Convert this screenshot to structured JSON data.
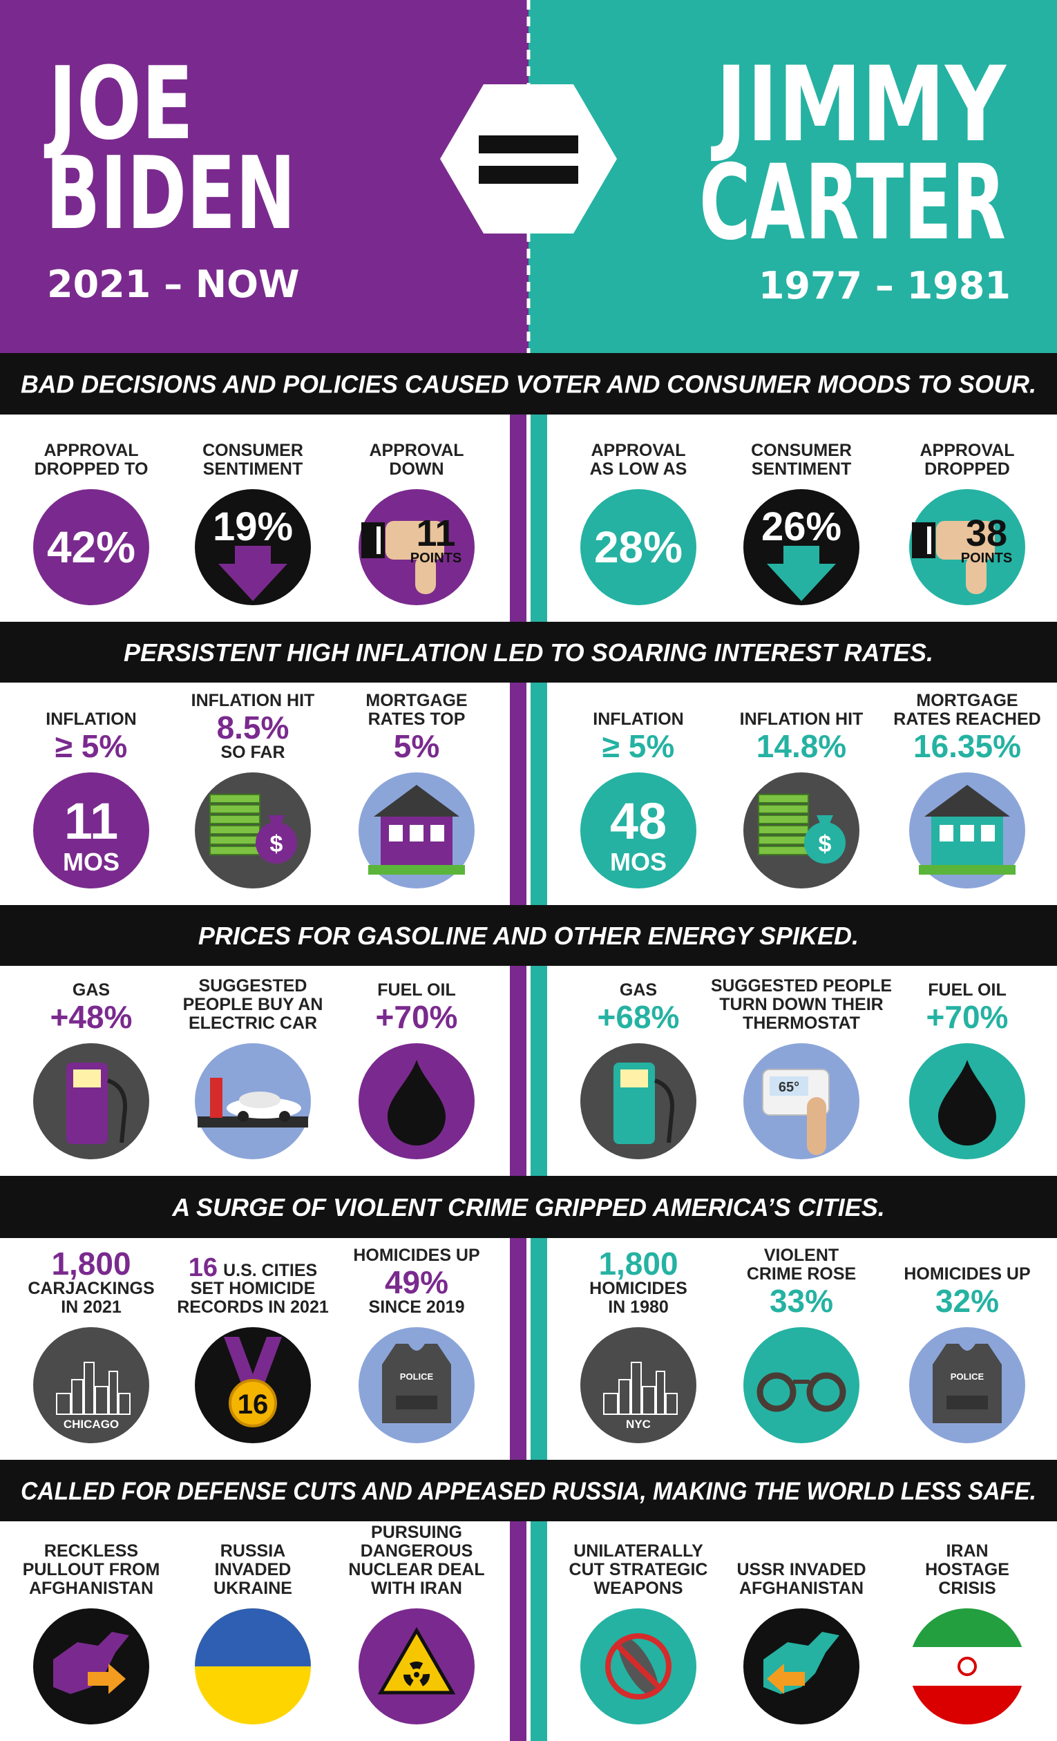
{
  "header": {
    "left": {
      "name": [
        "JOE",
        "BIDEN"
      ],
      "years": "2021 – NOW"
    },
    "right": {
      "name": [
        "JIMMY",
        "CARTER"
      ],
      "years": "1977 – 1981"
    }
  },
  "sections": [
    {
      "banner": "BAD DECISIONS AND POLICIES CAUSED VOTER AND CONSUMER MOODS TO SOUR.",
      "left": [
        {
          "label": [
            "APPROVAL",
            "DROPPED TO"
          ],
          "circle": [
            "42%"
          ]
        },
        {
          "label": [
            "CONSUMER",
            "SENTIMENT"
          ],
          "circle": [
            "19%"
          ]
        },
        {
          "label": [
            "APPROVAL",
            "DOWN"
          ],
          "circle": [
            "11",
            "POINTS"
          ]
        }
      ],
      "right": [
        {
          "label": [
            "APPROVAL",
            "AS LOW AS"
          ],
          "circle": [
            "28%"
          ]
        },
        {
          "label": [
            "CONSUMER",
            "SENTIMENT"
          ],
          "circle": [
            "26%"
          ]
        },
        {
          "label": [
            "APPROVAL",
            "DROPPED"
          ],
          "circle": [
            "38",
            "POINTS"
          ]
        }
      ]
    },
    {
      "banner": "PERSISTENT HIGH INFLATION LED TO SOARING INTEREST RATES.",
      "left": [
        {
          "label": [
            "INFLATION"
          ],
          "stat": "≥ 5%",
          "circle": [
            "11",
            "MOS"
          ]
        },
        {
          "label": [
            "INFLATION HIT"
          ],
          "stat": "8.5%",
          "sub": [
            "SO FAR"
          ],
          "circle": [
            "$"
          ]
        },
        {
          "label": [
            "MORTGAGE",
            "RATES TOP"
          ],
          "stat": "5%"
        }
      ],
      "right": [
        {
          "label": [
            "INFLATION"
          ],
          "stat": "≥ 5%",
          "circle": [
            "48",
            "MOS"
          ]
        },
        {
          "label": [
            "INFLATION HIT"
          ],
          "stat": "14.8%",
          "circle": [
            "$"
          ]
        },
        {
          "label": [
            "MORTGAGE",
            "RATES REACHED"
          ],
          "stat": "16.35%"
        }
      ]
    },
    {
      "banner": "PRICES FOR GASOLINE AND OTHER ENERGY SPIKED.",
      "left": [
        {
          "label": [
            "GAS"
          ],
          "stat": "+48%"
        },
        {
          "label": [
            "SUGGESTED",
            "PEOPLE BUY AN",
            "ELECTRIC CAR"
          ]
        },
        {
          "label": [
            "FUEL OIL"
          ],
          "stat": "+70%"
        }
      ],
      "right": [
        {
          "label": [
            "GAS"
          ],
          "stat": "+68%"
        },
        {
          "label": [
            "SUGGESTED PEOPLE",
            "TURN DOWN THEIR",
            "THERMOSTAT"
          ],
          "circle": [
            "65°"
          ]
        },
        {
          "label": [
            "FUEL OIL"
          ],
          "stat": "+70%"
        }
      ]
    },
    {
      "banner": "A SURGE OF VIOLENT CRIME GRIPPED AMERICA’S CITIES.",
      "left": [
        {
          "top": "1,800",
          "label": [
            "CARJACKINGS",
            "IN 2021"
          ],
          "circle": [
            "CHICAGO"
          ]
        },
        {
          "lead": "16",
          "label": [
            "U.S. CITIES",
            "SET HOMICIDE",
            "RECORDS IN 2021"
          ],
          "circle": [
            "16"
          ]
        },
        {
          "label": [
            "HOMICIDES UP"
          ],
          "stat": "49%",
          "sub": [
            "SINCE 2019"
          ],
          "circle": [
            "POLICE"
          ]
        }
      ],
      "right": [
        {
          "top": "1,800",
          "label": [
            "HOMICIDES",
            "IN 1980"
          ],
          "circle": [
            "NYC"
          ]
        },
        {
          "label": [
            "VIOLENT",
            "CRIME ROSE"
          ],
          "stat": "33%"
        },
        {
          "label": [
            "HOMICIDES UP"
          ],
          "stat": "32%",
          "circle": [
            "POLICE"
          ]
        }
      ]
    },
    {
      "banner": "CALLED FOR DEFENSE CUTS AND APPEASED RUSSIA, MAKING THE WORLD LESS SAFE.",
      "left": [
        {
          "label": [
            "RECKLESS",
            "PULLOUT FROM",
            "AFGHANISTAN"
          ]
        },
        {
          "label": [
            "RUSSIA",
            "INVADED",
            "UKRAINE"
          ]
        },
        {
          "label": [
            "PURSUING",
            "DANGEROUS",
            "NUCLEAR DEAL",
            "WITH IRAN"
          ]
        }
      ],
      "right": [
        {
          "label": [
            "UNILATERALLY",
            "CUT STRATEGIC",
            "WEAPONS"
          ]
        },
        {
          "label": [
            "USSR INVADED",
            "AFGHANISTAN"
          ]
        },
        {
          "label": [
            "IRAN",
            "HOSTAGE",
            "CRISIS"
          ]
        }
      ]
    }
  ]
}
